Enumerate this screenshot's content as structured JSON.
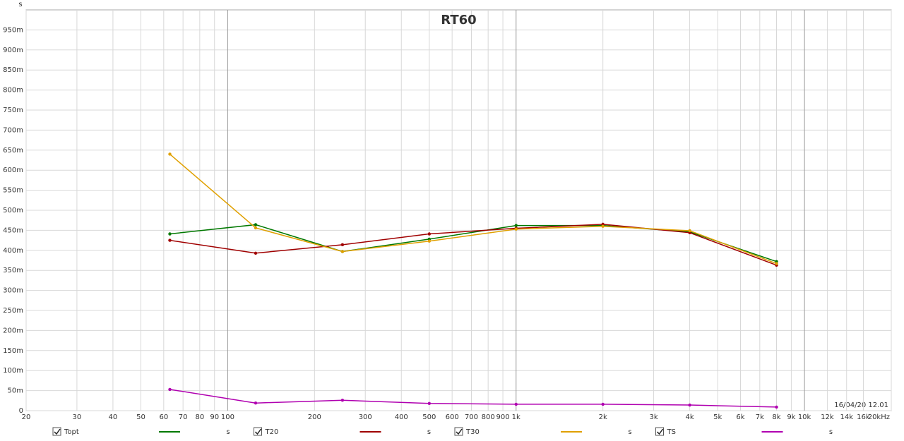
{
  "chart_data": {
    "type": "line",
    "title": "RT60",
    "y_unit": "s",
    "timestamp": "16/04/20 12.01",
    "x_log": true,
    "grid": true,
    "x": [
      63,
      125,
      250,
      500,
      1000,
      2000,
      4000,
      8000
    ],
    "xlim": [
      20,
      20000
    ],
    "xticks": [
      20,
      30,
      40,
      50,
      60,
      70,
      80,
      90,
      100,
      200,
      300,
      400,
      500,
      600,
      700,
      800,
      900,
      {
        "value": 1000,
        "label": "1k"
      },
      {
        "value": 2000,
        "label": "2k"
      },
      {
        "value": 3000,
        "label": "3k"
      },
      {
        "value": 4000,
        "label": "4k"
      },
      {
        "value": 5000,
        "label": "5k"
      },
      {
        "value": 6000,
        "label": "6k"
      },
      {
        "value": 7000,
        "label": "7k"
      },
      {
        "value": 8000,
        "label": "8k"
      },
      {
        "value": 9000,
        "label": "9k"
      },
      {
        "value": 10000,
        "label": "10k"
      },
      {
        "value": 12000,
        "label": "12k"
      },
      {
        "value": 14000,
        "label": "14k"
      },
      {
        "value": 16000,
        "label": "16k"
      },
      {
        "value": 20000,
        "label": "20kHz"
      }
    ],
    "ylim": [
      0,
      1.0
    ],
    "yticks": [
      0,
      {
        "value": 0.05,
        "label": "50m"
      },
      {
        "value": 0.1,
        "label": "100m"
      },
      {
        "value": 0.15,
        "label": "150m"
      },
      {
        "value": 0.2,
        "label": "200m"
      },
      {
        "value": 0.25,
        "label": "250m"
      },
      {
        "value": 0.3,
        "label": "300m"
      },
      {
        "value": 0.35,
        "label": "350m"
      },
      {
        "value": 0.4,
        "label": "400m"
      },
      {
        "value": 0.45,
        "label": "450m"
      },
      {
        "value": 0.5,
        "label": "500m"
      },
      {
        "value": 0.55,
        "label": "550m"
      },
      {
        "value": 0.6,
        "label": "600m"
      },
      {
        "value": 0.65,
        "label": "650m"
      },
      {
        "value": 0.7,
        "label": "700m"
      },
      {
        "value": 0.75,
        "label": "750m"
      },
      {
        "value": 0.8,
        "label": "800m"
      },
      {
        "value": 0.85,
        "label": "850m"
      },
      {
        "value": 0.9,
        "label": "900m"
      },
      {
        "value": 0.95,
        "label": "950m"
      }
    ],
    "series": [
      {
        "name": "Topt",
        "unit": "s",
        "color": "#007800",
        "values": [
          0.441,
          0.464,
          0.397,
          0.428,
          0.462,
          0.462,
          0.446,
          0.372
        ]
      },
      {
        "name": "T20",
        "unit": "s",
        "color": "#a00000",
        "values": [
          0.425,
          0.393,
          0.414,
          0.441,
          0.455,
          0.465,
          0.444,
          0.363
        ]
      },
      {
        "name": "T30",
        "unit": "s",
        "color": "#e0a000",
        "values": [
          0.64,
          0.456,
          0.397,
          0.423,
          0.453,
          0.46,
          0.449,
          0.367
        ]
      },
      {
        "name": "TS",
        "unit": "s",
        "color": "#b000b0",
        "values": [
          0.053,
          0.019,
          0.026,
          0.018,
          0.016,
          0.016,
          0.014,
          0.009
        ]
      }
    ]
  }
}
